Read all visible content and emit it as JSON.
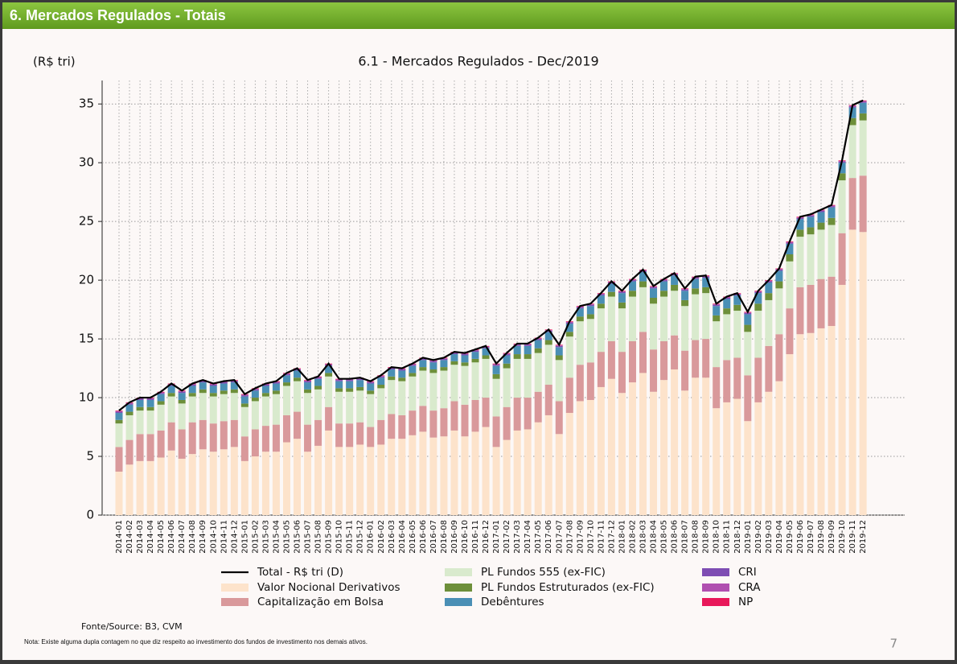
{
  "header": {
    "title": "6. Mercados Regulados - Totais"
  },
  "chart_data": {
    "type": "bar",
    "stacked": true,
    "title": "6.1 - Mercados Regulados - Dec/2019",
    "y_label": "(R$ tri)",
    "categories": [
      "2014-01",
      "2014-02",
      "2014-03",
      "2014-04",
      "2014-05",
      "2014-06",
      "2014-07",
      "2014-08",
      "2014-09",
      "2014-10",
      "2014-11",
      "2014-12",
      "2015-01",
      "2015-02",
      "2015-03",
      "2015-04",
      "2015-05",
      "2015-06",
      "2015-07",
      "2015-08",
      "2015-09",
      "2015-10",
      "2015-11",
      "2015-12",
      "2016-01",
      "2016-02",
      "2016-03",
      "2016-04",
      "2016-05",
      "2016-06",
      "2016-07",
      "2016-08",
      "2016-09",
      "2016-10",
      "2016-11",
      "2016-12",
      "2017-01",
      "2017-02",
      "2017-03",
      "2017-04",
      "2017-05",
      "2017-06",
      "2017-07",
      "2017-08",
      "2017-09",
      "2017-10",
      "2017-11",
      "2017-12",
      "2018-01",
      "2018-02",
      "2018-03",
      "2018-04",
      "2018-05",
      "2018-06",
      "2018-07",
      "2018-08",
      "2018-09",
      "2018-10",
      "2018-11",
      "2018-12",
      "2019-01",
      "2019-02",
      "2019-03",
      "2019-04",
      "2019-05",
      "2019-06",
      "2019-07",
      "2019-08",
      "2019-09",
      "2019-10",
      "2019-11",
      "2019-12"
    ],
    "series": [
      {
        "name": "Total - R$ tri (D)",
        "type": "line",
        "color": "#000000",
        "values": [
          8.9,
          9.6,
          10.0,
          10.0,
          10.5,
          11.2,
          10.6,
          11.2,
          11.5,
          11.2,
          11.4,
          11.5,
          10.3,
          10.8,
          11.2,
          11.4,
          12.1,
          12.5,
          11.5,
          11.8,
          12.9,
          11.6,
          11.6,
          11.7,
          11.4,
          11.9,
          12.6,
          12.5,
          12.9,
          13.4,
          13.2,
          13.4,
          13.9,
          13.8,
          14.1,
          14.4,
          12.9,
          13.8,
          14.6,
          14.6,
          15.1,
          15.8,
          14.5,
          16.5,
          17.8,
          18.0,
          18.9,
          19.9,
          19.1,
          20.1,
          20.9,
          19.5,
          20.1,
          20.6,
          19.3,
          20.3,
          20.4,
          18.0,
          18.6,
          18.9,
          17.3,
          19.1,
          20.0,
          21.0,
          23.3,
          25.4,
          25.6,
          26.0,
          26.4,
          30.2,
          34.9,
          35.3
        ]
      },
      {
        "name": "Valor Nocional Derivativos",
        "color": "#fde3cb",
        "values": [
          3.7,
          4.3,
          4.6,
          4.6,
          4.9,
          5.5,
          4.8,
          5.2,
          5.6,
          5.4,
          5.6,
          5.8,
          4.6,
          5.0,
          5.4,
          5.4,
          6.2,
          6.5,
          5.4,
          5.9,
          7.2,
          5.8,
          5.8,
          6.0,
          5.8,
          6.0,
          6.5,
          6.5,
          6.8,
          7.1,
          6.6,
          6.7,
          7.2,
          6.7,
          7.1,
          7.5,
          5.8,
          6.4,
          7.2,
          7.3,
          7.9,
          8.5,
          6.9,
          8.7,
          9.7,
          9.8,
          10.9,
          11.6,
          10.4,
          11.3,
          12.1,
          10.5,
          11.5,
          12.4,
          10.6,
          11.7,
          11.7,
          9.1,
          9.6,
          9.9,
          8.0,
          9.6,
          10.5,
          11.4,
          13.7,
          15.4,
          15.5,
          15.9,
          16.1,
          19.6,
          24.3,
          24.1
        ]
      },
      {
        "name": "Capitalização em Bolsa",
        "color": "#d9999b",
        "values": [
          2.1,
          2.1,
          2.3,
          2.3,
          2.3,
          2.4,
          2.5,
          2.7,
          2.5,
          2.4,
          2.4,
          2.3,
          2.1,
          2.3,
          2.2,
          2.3,
          2.3,
          2.3,
          2.3,
          2.2,
          2.0,
          2.0,
          2.0,
          1.9,
          1.7,
          2.1,
          2.1,
          2.0,
          2.1,
          2.2,
          2.3,
          2.4,
          2.5,
          2.7,
          2.7,
          2.5,
          2.6,
          2.8,
          2.8,
          2.7,
          2.6,
          2.6,
          2.8,
          3.0,
          3.1,
          3.2,
          3.0,
          3.2,
          3.5,
          3.5,
          3.5,
          3.6,
          3.3,
          2.9,
          3.4,
          3.2,
          3.3,
          3.5,
          3.6,
          3.5,
          3.9,
          3.8,
          3.9,
          4.0,
          3.9,
          4.0,
          4.1,
          4.2,
          4.2,
          4.4,
          4.4,
          4.8
        ]
      },
      {
        "name": "PL Fundos 555 (ex-FIC)",
        "color": "#d9eacd",
        "values": [
          2.0,
          2.1,
          2.0,
          2.0,
          2.2,
          2.2,
          2.2,
          2.2,
          2.3,
          2.3,
          2.3,
          2.3,
          2.5,
          2.4,
          2.5,
          2.6,
          2.5,
          2.6,
          2.7,
          2.6,
          2.6,
          2.7,
          2.7,
          2.7,
          2.8,
          2.7,
          2.9,
          2.9,
          2.9,
          3.0,
          3.2,
          3.2,
          3.1,
          3.3,
          3.2,
          3.3,
          3.2,
          3.3,
          3.3,
          3.3,
          3.3,
          3.4,
          3.5,
          3.5,
          3.7,
          3.7,
          3.7,
          3.8,
          3.7,
          3.8,
          3.8,
          3.9,
          3.8,
          3.8,
          3.8,
          3.9,
          3.9,
          3.9,
          3.9,
          4.0,
          3.7,
          4.0,
          3.9,
          3.9,
          4.0,
          4.3,
          4.3,
          4.2,
          4.4,
          4.5,
          4.5,
          4.7
        ]
      },
      {
        "name": "PL Fundos Estruturados (ex-FIC)",
        "color": "#6d8f3a",
        "values": [
          0.3,
          0.3,
          0.3,
          0.3,
          0.3,
          0.3,
          0.3,
          0.3,
          0.3,
          0.3,
          0.3,
          0.3,
          0.3,
          0.3,
          0.3,
          0.3,
          0.3,
          0.3,
          0.3,
          0.3,
          0.3,
          0.3,
          0.3,
          0.3,
          0.3,
          0.3,
          0.3,
          0.3,
          0.3,
          0.3,
          0.3,
          0.3,
          0.3,
          0.3,
          0.3,
          0.3,
          0.4,
          0.4,
          0.4,
          0.4,
          0.4,
          0.4,
          0.4,
          0.4,
          0.4,
          0.4,
          0.4,
          0.4,
          0.5,
          0.5,
          0.5,
          0.5,
          0.5,
          0.5,
          0.5,
          0.5,
          0.5,
          0.5,
          0.5,
          0.5,
          0.6,
          0.6,
          0.6,
          0.6,
          0.6,
          0.6,
          0.6,
          0.6,
          0.6,
          0.6,
          0.6,
          0.6
        ]
      },
      {
        "name": "Debêntures",
        "color": "#4a8fb5",
        "values": [
          0.6,
          0.6,
          0.6,
          0.6,
          0.6,
          0.6,
          0.6,
          0.6,
          0.6,
          0.6,
          0.6,
          0.6,
          0.6,
          0.6,
          0.6,
          0.6,
          0.6,
          0.6,
          0.6,
          0.6,
          0.6,
          0.6,
          0.6,
          0.6,
          0.6,
          0.6,
          0.6,
          0.6,
          0.6,
          0.6,
          0.6,
          0.6,
          0.6,
          0.6,
          0.6,
          0.6,
          0.7,
          0.7,
          0.7,
          0.7,
          0.7,
          0.7,
          0.7,
          0.7,
          0.7,
          0.7,
          0.7,
          0.7,
          0.8,
          0.8,
          0.8,
          0.8,
          0.8,
          0.8,
          0.8,
          0.8,
          0.8,
          0.8,
          0.8,
          0.8,
          0.9,
          0.9,
          0.9,
          0.9,
          0.9,
          0.9,
          0.9,
          0.9,
          0.9,
          0.9,
          0.9,
          0.9
        ]
      },
      {
        "name": "CRI",
        "color": "#7e4db3",
        "values": [
          0.1,
          0.1,
          0.1,
          0.1,
          0.1,
          0.1,
          0.1,
          0.1,
          0.1,
          0.1,
          0.1,
          0.1,
          0.1,
          0.1,
          0.1,
          0.1,
          0.1,
          0.1,
          0.1,
          0.1,
          0.1,
          0.1,
          0.1,
          0.1,
          0.1,
          0.1,
          0.1,
          0.1,
          0.1,
          0.1,
          0.1,
          0.1,
          0.1,
          0.1,
          0.1,
          0.1,
          0.1,
          0.1,
          0.1,
          0.1,
          0.1,
          0.1,
          0.1,
          0.1,
          0.1,
          0.1,
          0.1,
          0.1,
          0.1,
          0.1,
          0.1,
          0.1,
          0.1,
          0.1,
          0.1,
          0.1,
          0.1,
          0.1,
          0.1,
          0.1,
          0.1,
          0.1,
          0.1,
          0.1,
          0.1,
          0.1,
          0.1,
          0.1,
          0.1,
          0.1,
          0.1,
          0.1
        ]
      },
      {
        "name": "CRA",
        "color": "#b04fb0",
        "values": [
          0.05,
          0.05,
          0.05,
          0.05,
          0.05,
          0.05,
          0.05,
          0.05,
          0.05,
          0.05,
          0.05,
          0.05,
          0.05,
          0.05,
          0.05,
          0.05,
          0.05,
          0.05,
          0.05,
          0.05,
          0.05,
          0.05,
          0.05,
          0.05,
          0.05,
          0.05,
          0.05,
          0.05,
          0.05,
          0.05,
          0.05,
          0.05,
          0.05,
          0.05,
          0.05,
          0.05,
          0.05,
          0.05,
          0.05,
          0.05,
          0.05,
          0.05,
          0.05,
          0.05,
          0.05,
          0.05,
          0.05,
          0.05,
          0.05,
          0.05,
          0.05,
          0.05,
          0.05,
          0.05,
          0.05,
          0.05,
          0.05,
          0.05,
          0.05,
          0.05,
          0.05,
          0.05,
          0.05,
          0.05,
          0.05,
          0.05,
          0.05,
          0.05,
          0.05,
          0.05,
          0.05,
          0.05
        ]
      },
      {
        "name": "NP",
        "color": "#e8185a",
        "values": [
          0.05,
          0.05,
          0.05,
          0.05,
          0.05,
          0.05,
          0.05,
          0.05,
          0.05,
          0.05,
          0.05,
          0.05,
          0.05,
          0.05,
          0.05,
          0.05,
          0.05,
          0.05,
          0.05,
          0.05,
          0.05,
          0.05,
          0.05,
          0.05,
          0.05,
          0.05,
          0.05,
          0.05,
          0.05,
          0.05,
          0.05,
          0.05,
          0.05,
          0.05,
          0.05,
          0.05,
          0.05,
          0.05,
          0.05,
          0.05,
          0.05,
          0.05,
          0.05,
          0.05,
          0.05,
          0.05,
          0.05,
          0.05,
          0.05,
          0.05,
          0.05,
          0.05,
          0.05,
          0.05,
          0.05,
          0.05,
          0.05,
          0.05,
          0.05,
          0.05,
          0.05,
          0.05,
          0.05,
          0.05,
          0.05,
          0.05,
          0.05,
          0.05,
          0.05,
          0.05,
          0.05,
          0.05
        ]
      }
    ],
    "ylim": [
      0,
      37
    ],
    "yticks": [
      0,
      5,
      10,
      15,
      20,
      25,
      30,
      35
    ],
    "grid": true
  },
  "source": "Fonte/Source: B3, CVM",
  "note": "Nota: Existe alguma dupla contagem no que diz respeito ao investimento dos fundos de investimento nos demais ativos.",
  "page_number": 7
}
